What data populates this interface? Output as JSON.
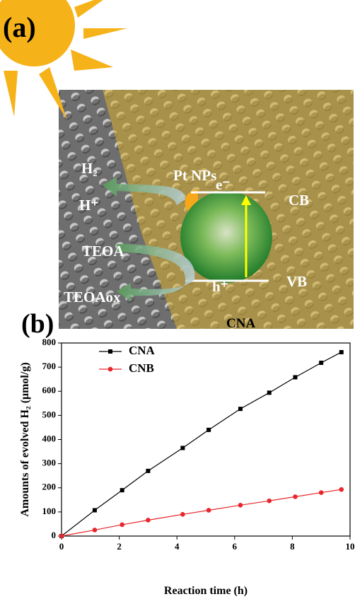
{
  "panel_labels": [
    "(a)",
    "(b)"
  ],
  "diagram": {
    "labels": {
      "h2": "H₂",
      "h_plus": "H⁺",
      "pt": "Pt NPs",
      "e_minus": "e⁻",
      "cb": "CB",
      "teoa": "TEOA",
      "h_hole": "h⁺",
      "vb": "VB",
      "teoaox": "TEOAox",
      "cna": "CNA"
    }
  },
  "chart_data": {
    "type": "line",
    "xlabel": "Reaction time (h)",
    "ylabel": "Amounts of evolved H₂ (μmol/g)",
    "x": [
      0,
      1.15,
      2.1,
      3.0,
      4.2,
      5.1,
      6.2,
      7.2,
      8.1,
      9.0,
      9.7
    ],
    "series": [
      {
        "name": "CNA",
        "color": "#000000",
        "marker": "square",
        "values": [
          0,
          107,
          190,
          270,
          365,
          440,
          527,
          594,
          658,
          718,
          762
        ]
      },
      {
        "name": "CNB",
        "color": "#e8262b",
        "marker": "circle",
        "values": [
          0,
          25,
          47,
          66,
          90,
          107,
          128,
          146,
          163,
          180,
          193
        ]
      }
    ],
    "xlim": [
      0,
      10
    ],
    "xticks": [
      0,
      2,
      4,
      6,
      8,
      10
    ],
    "ylim": [
      0,
      800
    ],
    "yticks": [
      0,
      100,
      200,
      300,
      400,
      500,
      600,
      700,
      800
    ],
    "legend": "upper left"
  }
}
